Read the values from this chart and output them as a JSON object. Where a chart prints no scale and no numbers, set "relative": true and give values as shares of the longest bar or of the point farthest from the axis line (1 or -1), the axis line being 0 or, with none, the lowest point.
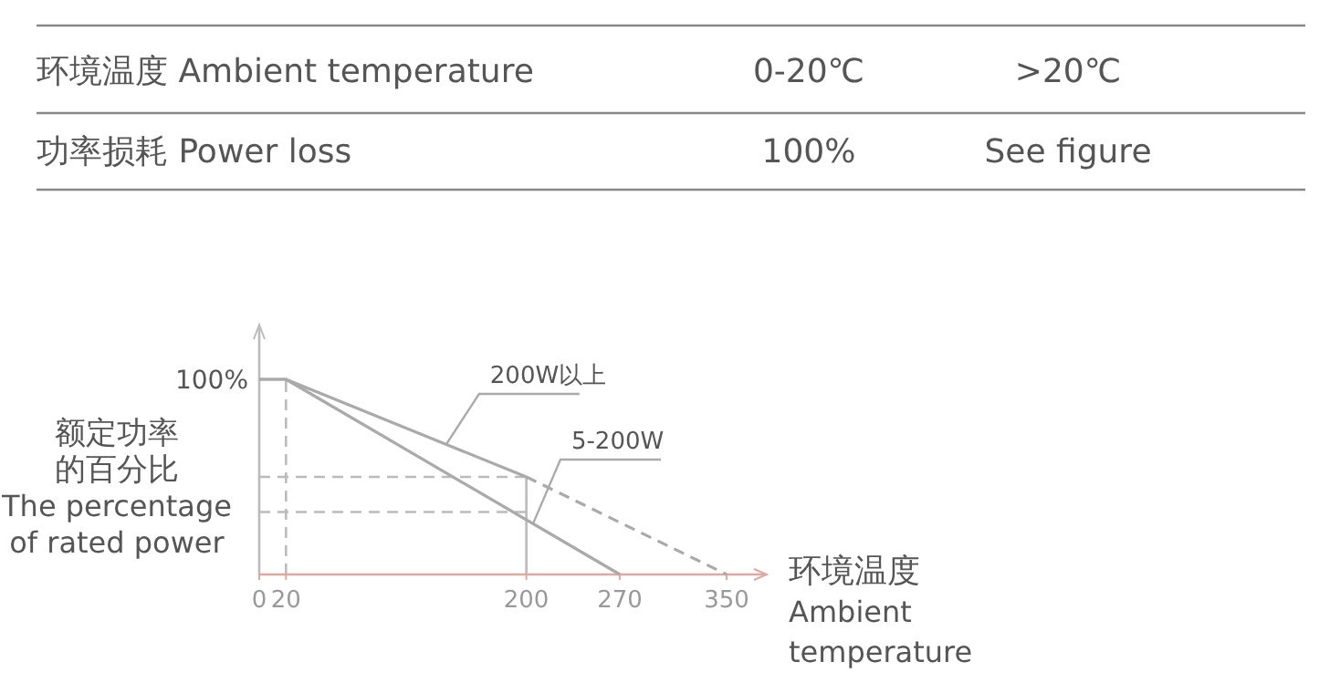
{
  "chart_data": {
    "type": "line",
    "relative": true,
    "annotations": [
      "环境温度 Ambient temperature",
      "0-20℃",
      ">20℃",
      "功率损耗  Power loss",
      "100%",
      "See figure",
      {
        "text": "100%",
        "x": 0,
        "y": 1
      }
    ],
    "ylabel": "额定功率的百分比\nThe percentage\nof rated power",
    "xlabel": "环境温度\nAmbient\ntemperature",
    "xlim": [
      0,
      380
    ],
    "xticks": [
      0,
      20,
      200,
      270,
      350
    ],
    "series": [
      {
        "name": "200W以上",
        "color": "#aaaaaa",
        "x": [
          0,
          20,
          200
        ],
        "values": [
          1,
          1,
          0.5
        ],
        "line_style": "solid"
      },
      {
        "color": "#aaaaaa",
        "x": [
          200,
          350
        ],
        "values": [
          0.5,
          0
        ],
        "line_style": "dashed"
      },
      {
        "name": "5-200W",
        "color": "#aaaaaa",
        "x": [
          0,
          20,
          270
        ],
        "values": [
          1,
          1,
          0
        ],
        "line_style": "solid"
      }
    ],
    "ref_lines": [
      {
        "axis": "x",
        "value": 20,
        "line_style": "dashed",
        "color": "#bbbbbb"
      },
      {
        "axis": "x",
        "value": 200,
        "line_style": "solid",
        "color": "#bbbbbb"
      },
      {
        "axis": "y",
        "value": 0.5,
        "line_style": "dashed",
        "color": "#bbbbbb"
      },
      {
        "axis": "y",
        "value": 0.32,
        "line_style": "dashed",
        "color": "#bbbbbb"
      }
    ]
  }
}
